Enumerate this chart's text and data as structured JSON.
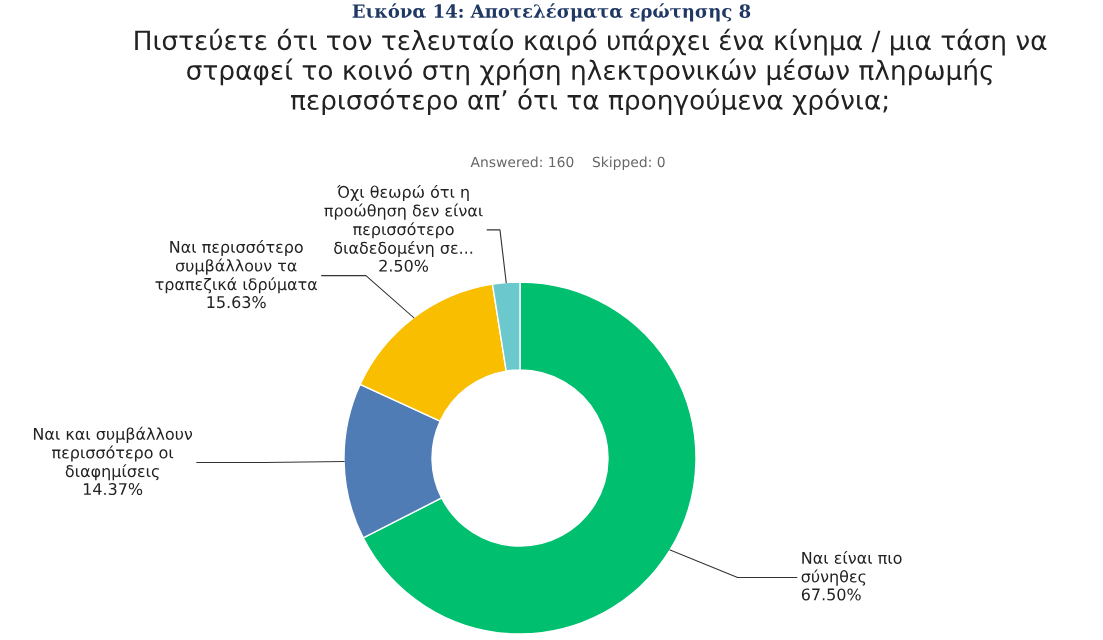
{
  "chart_data": {
    "type": "donut",
    "title": "Πιστεύετε ότι τον τελευταίο καιρό υπάρχει ένα κίνημα / μια τάση να\nστραφεί το κοινό στη χρήση ηλεκτρονικών μέσων πληρωμής\nπερισσότερο απ’ ότι τα προηγούμενα χρόνια;",
    "subtitle": "Answered: 160    Skipped: 0",
    "annotations": [
      "Εικόνα 14: Αποτελέσματα ερώτησης 8"
    ],
    "categories": [
      "Ναι είναι πιο\nσύνηθες",
      "Ναι και συμβάλλουν\nπερισσότερο οι\nδιαφημίσεις",
      "Ναι περισσότερο\nσυμβάλλουν τα\nτραπεζικά ιδρύματα",
      "Όχι θεωρώ ότι η\nπροώθηση δεν είναι\nπερισσότερο\nδιαδεδομένη σε..."
    ],
    "values": [
      67.5,
      14.37,
      15.63,
      2.5
    ],
    "value_labels": [
      "67.50%",
      "14.37%",
      "15.63%",
      "2.50%"
    ],
    "colors": [
      "#00bf6f",
      "#507cb6",
      "#f9be00",
      "#6bc8cd"
    ],
    "legend": false
  }
}
